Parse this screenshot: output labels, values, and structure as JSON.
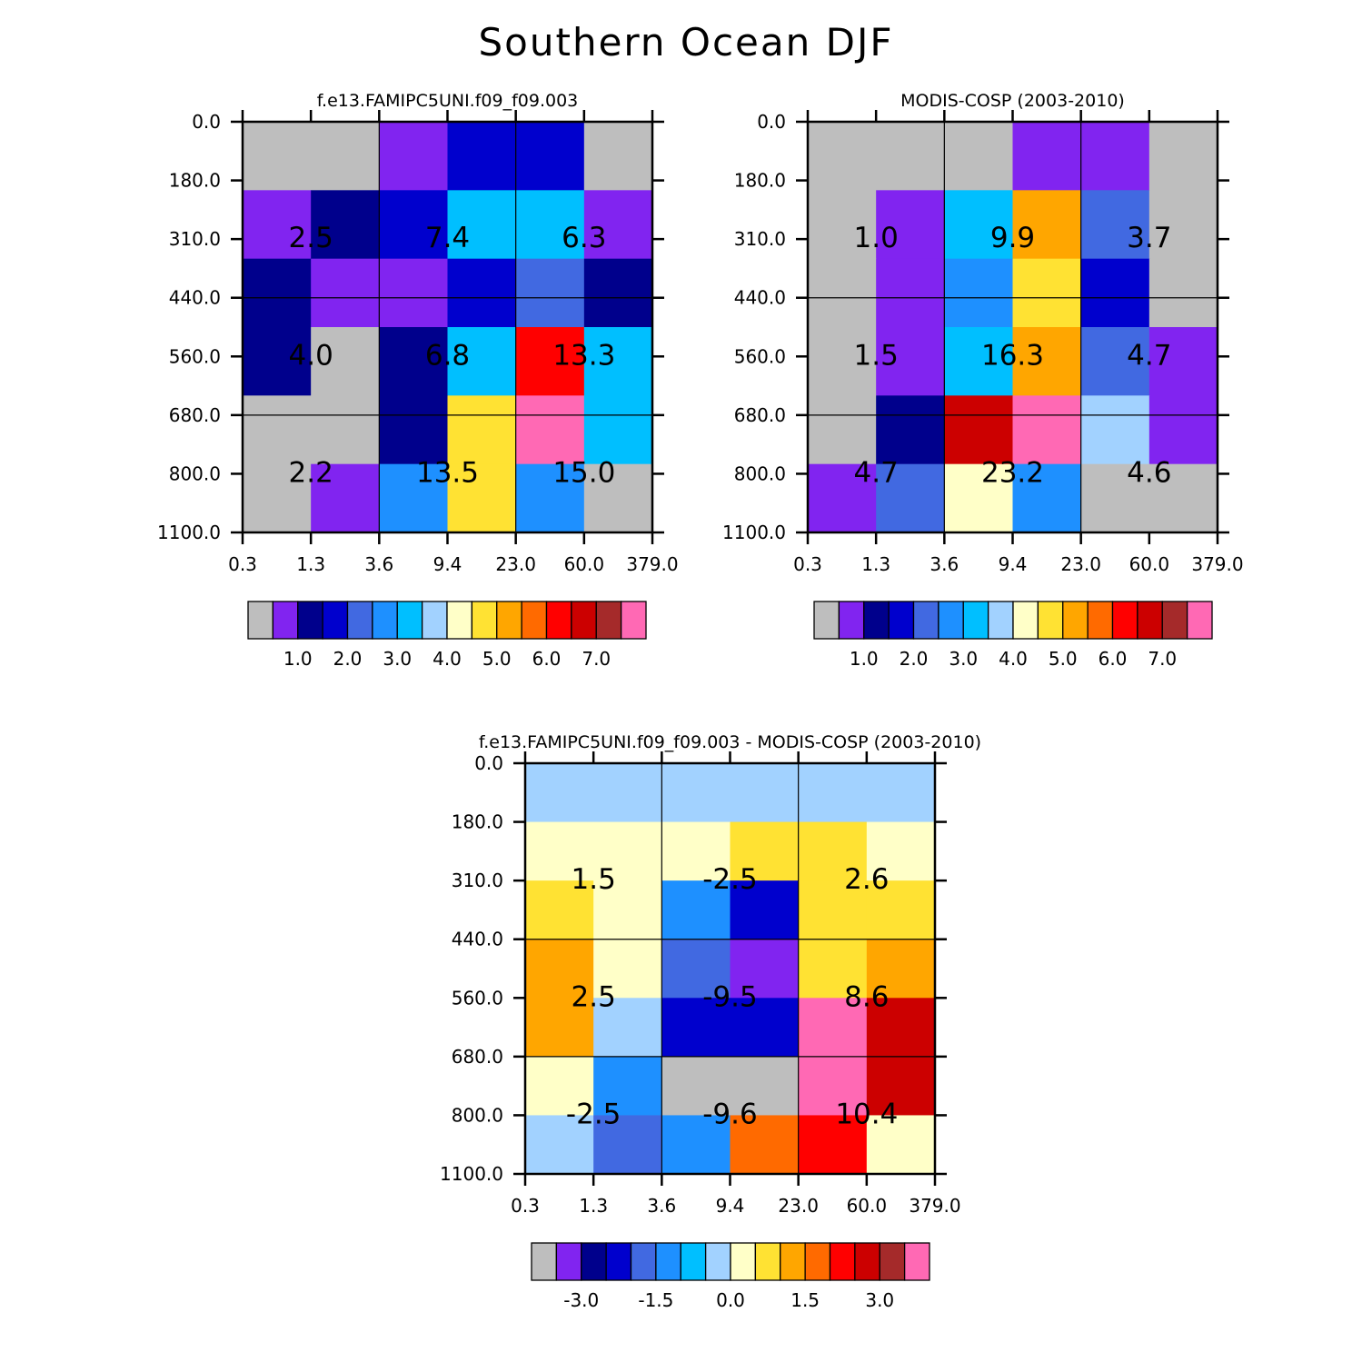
{
  "title": "Southern Ocean DJF",
  "chart_data": [
    {
      "type": "heatmap",
      "title": "f.e13.FAMIPC5UNI.f09_f09.003",
      "x_ticks": [
        "0.3",
        "1.3",
        "3.6",
        "9.4",
        "23.0",
        "60.0",
        "379.0"
      ],
      "y_ticks": [
        "0.0",
        "180.0",
        "310.0",
        "440.0",
        "560.0",
        "680.0",
        "800.0",
        "1100.0"
      ],
      "cells": [
        [
          0,
          0,
          1,
          3,
          3,
          0
        ],
        [
          1,
          2,
          3,
          6,
          6,
          1
        ],
        [
          2,
          1,
          1,
          3,
          4,
          2
        ],
        [
          2,
          0,
          2,
          6,
          12,
          6
        ],
        [
          0,
          0,
          2,
          9,
          15,
          6
        ],
        [
          0,
          1,
          5,
          9,
          5,
          0
        ]
      ],
      "box_values": [
        [
          "2.5",
          "7.4",
          "6.3"
        ],
        [
          "4.0",
          "6.8",
          "13.3"
        ],
        [
          "2.2",
          "13.5",
          "15.0"
        ]
      ],
      "colorbar_labels": [
        "1.0",
        "2.0",
        "3.0",
        "4.0",
        "5.0",
        "6.0",
        "7.0"
      ],
      "colorbar_label_start": 1
    },
    {
      "type": "heatmap",
      "title": "MODIS-COSP (2003-2010)",
      "x_ticks": [
        "0.3",
        "1.3",
        "3.6",
        "9.4",
        "23.0",
        "60.0",
        "379.0"
      ],
      "y_ticks": [
        "0.0",
        "180.0",
        "310.0",
        "440.0",
        "560.0",
        "680.0",
        "800.0",
        "1100.0"
      ],
      "cells": [
        [
          0,
          0,
          0,
          1,
          1,
          0
        ],
        [
          0,
          1,
          6,
          10,
          4,
          0
        ],
        [
          0,
          1,
          5,
          9,
          3,
          0
        ],
        [
          0,
          1,
          6,
          10,
          4,
          1
        ],
        [
          0,
          2,
          13,
          15,
          7,
          1
        ],
        [
          1,
          4,
          8,
          5,
          0,
          0
        ]
      ],
      "box_values": [
        [
          "1.0",
          "9.9",
          "3.7"
        ],
        [
          "1.5",
          "16.3",
          "4.7"
        ],
        [
          "4.7",
          "23.2",
          "4.6"
        ]
      ],
      "colorbar_labels": [
        "1.0",
        "2.0",
        "3.0",
        "4.0",
        "5.0",
        "6.0",
        "7.0"
      ],
      "colorbar_label_start": 1
    },
    {
      "type": "heatmap",
      "title": "f.e13.FAMIPC5UNI.f09_f09.003 - MODIS-COSP (2003-2010)",
      "x_ticks": [
        "0.3",
        "1.3",
        "3.6",
        "9.4",
        "23.0",
        "60.0",
        "379.0"
      ],
      "y_ticks": [
        "0.0",
        "180.0",
        "310.0",
        "440.0",
        "560.0",
        "680.0",
        "800.0",
        "1100.0"
      ],
      "cells": [
        [
          7,
          7,
          7,
          7,
          7,
          7
        ],
        [
          8,
          8,
          8,
          9,
          9,
          8
        ],
        [
          9,
          8,
          5,
          3,
          9,
          9
        ],
        [
          10,
          8,
          4,
          1,
          9,
          10
        ],
        [
          10,
          7,
          3,
          3,
          15,
          13
        ],
        [
          8,
          5,
          0,
          0,
          15,
          13
        ],
        [
          7,
          4,
          5,
          11,
          12,
          8
        ]
      ],
      "box_values": [
        [
          "1.5",
          "-2.5",
          "2.6"
        ],
        [
          "2.5",
          "-9.5",
          "8.6"
        ],
        [
          "-2.5",
          "-9.6",
          "10.4"
        ]
      ],
      "colorbar_labels": [
        "-3.0",
        "-1.5",
        "0.0",
        "1.5",
        "3.0"
      ],
      "colorbar_label_start": 1
    }
  ],
  "colors": {
    "palette": [
      "#bebebe",
      "#8124f0",
      "#00008c",
      "#0000cd",
      "#4169e1",
      "#1e90ff",
      "#00bfff",
      "#a2d2ff",
      "#ffffc8",
      "#ffe233",
      "#ffa600",
      "#ff6a00",
      "#ff0000",
      "#cc0000",
      "#a52a2a",
      "#ff69b4"
    ]
  }
}
